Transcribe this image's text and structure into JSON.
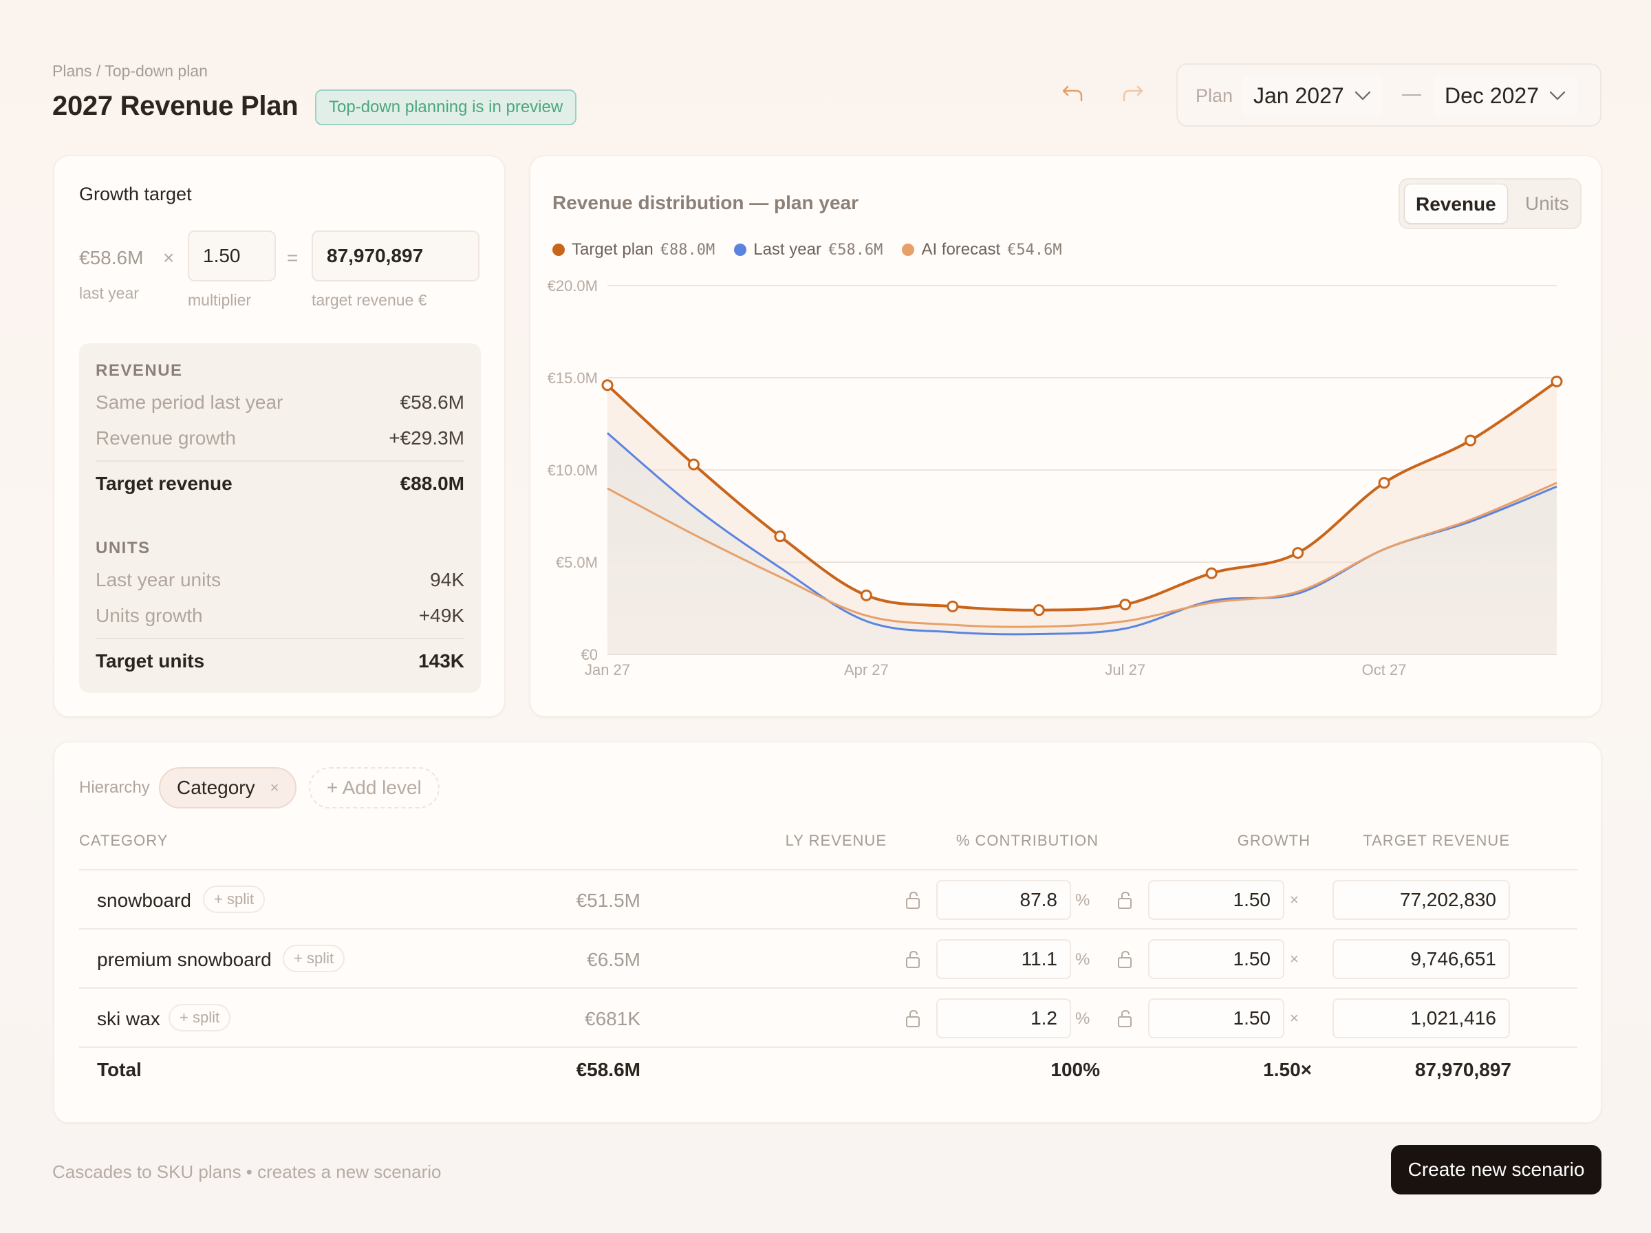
{
  "header": {
    "breadcrumb": "Plans / Top-down plan",
    "title": "2027 Revenue Plan",
    "badge": "Top-down planning is in preview",
    "plan_label": "Plan",
    "range_start": "Jan 2027",
    "range_dash": "—",
    "range_end": "Dec 2027",
    "undo_icon": "undo-icon",
    "redo_icon": "redo-icon"
  },
  "growth": {
    "title": "Growth target",
    "ly_value": "€58.6M",
    "times": "×",
    "multiplier": "1.50",
    "equals": "=",
    "target_revenue": "87,970,897",
    "caption_ly": "last year",
    "caption_mult": "multiplier",
    "caption_target": "target revenue €",
    "revenue_head": "REVENUE",
    "same_period_label": "Same period last year",
    "same_period_value": "€58.6M",
    "rev_growth_label": "Revenue growth",
    "rev_growth_value": "+€29.3M",
    "target_rev_label": "Target revenue",
    "target_rev_value": "€88.0M",
    "units_head": "UNITS",
    "ly_units_label": "Last year units",
    "ly_units_value": "94K",
    "units_growth_label": "Units growth",
    "units_growth_value": "+49K",
    "target_units_label": "Target units",
    "target_units_value": "143K"
  },
  "chart": {
    "title": "Revenue distribution — plan year",
    "toggle_revenue": "Revenue",
    "toggle_units": "Units",
    "legend": [
      {
        "name": "Target plan",
        "value": "€88.0M",
        "color": "#c8651b"
      },
      {
        "name": "Last year",
        "value": "€58.6M",
        "color": "#5b84e0"
      },
      {
        "name": "AI forecast",
        "value": "€54.6M",
        "color": "#e8a067"
      }
    ]
  },
  "chart_data": {
    "type": "line",
    "title": "Revenue distribution — plan year",
    "x": [
      "Jan 27",
      "Feb 27",
      "Mar 27",
      "Apr 27",
      "May 27",
      "Jun 27",
      "Jul 27",
      "Aug 27",
      "Sep 27",
      "Oct 27",
      "Nov 27",
      "Dec 27"
    ],
    "x_ticks": [
      "Jan 27",
      "Apr 27",
      "Jul 27",
      "Oct 27"
    ],
    "y_ticks": [
      "€0",
      "€5.0M",
      "€10.0M",
      "€15.0M",
      "€20.0M"
    ],
    "ylim": [
      0,
      20
    ],
    "y_unit": "€M",
    "grid": true,
    "legend_position": "top-left",
    "series": [
      {
        "name": "Target plan",
        "color": "#c8651b",
        "values": [
          14.6,
          10.3,
          6.4,
          3.2,
          2.6,
          2.4,
          2.7,
          4.4,
          5.5,
          9.3,
          11.6,
          14.8
        ]
      },
      {
        "name": "Last year",
        "color": "#5b84e0",
        "values": [
          12.0,
          8.0,
          4.7,
          1.8,
          1.2,
          1.1,
          1.4,
          2.9,
          3.3,
          5.7,
          7.2,
          9.1
        ]
      },
      {
        "name": "AI forecast",
        "color": "#e8a067",
        "values": [
          9.0,
          6.5,
          4.2,
          2.1,
          1.6,
          1.5,
          1.8,
          2.8,
          3.4,
          5.7,
          7.3,
          9.3
        ]
      }
    ]
  },
  "table": {
    "hierarchy_label": "Hierarchy",
    "chip": "Category",
    "chip_remove": "×",
    "add_level": "+ Add level",
    "headers": {
      "category": "CATEGORY",
      "ly_revenue": "LY REVENUE",
      "contribution": "% CONTRIBUTION",
      "growth": "GROWTH",
      "target": "TARGET REVENUE"
    },
    "split_label": "+ split",
    "pct_sign": "%",
    "times_sign": "×",
    "rows": [
      {
        "category": "snowboard",
        "ly_revenue": "€51.5M",
        "contribution": "87.8",
        "growth": "1.50",
        "target": "77,202,830"
      },
      {
        "category": "premium snowboard",
        "ly_revenue": "€6.5M",
        "contribution": "11.1",
        "growth": "1.50",
        "target": "9,746,651"
      },
      {
        "category": "ski wax",
        "ly_revenue": "€681K",
        "contribution": "1.2",
        "growth": "1.50",
        "target": "1,021,416"
      }
    ],
    "total": {
      "label": "Total",
      "ly_revenue": "€58.6M",
      "contribution": "100%",
      "growth": "1.50×",
      "target": "87,970,897"
    }
  },
  "footer": {
    "note": "Cascades to SKU plans • creates a new scenario",
    "cta": "Create new scenario"
  }
}
